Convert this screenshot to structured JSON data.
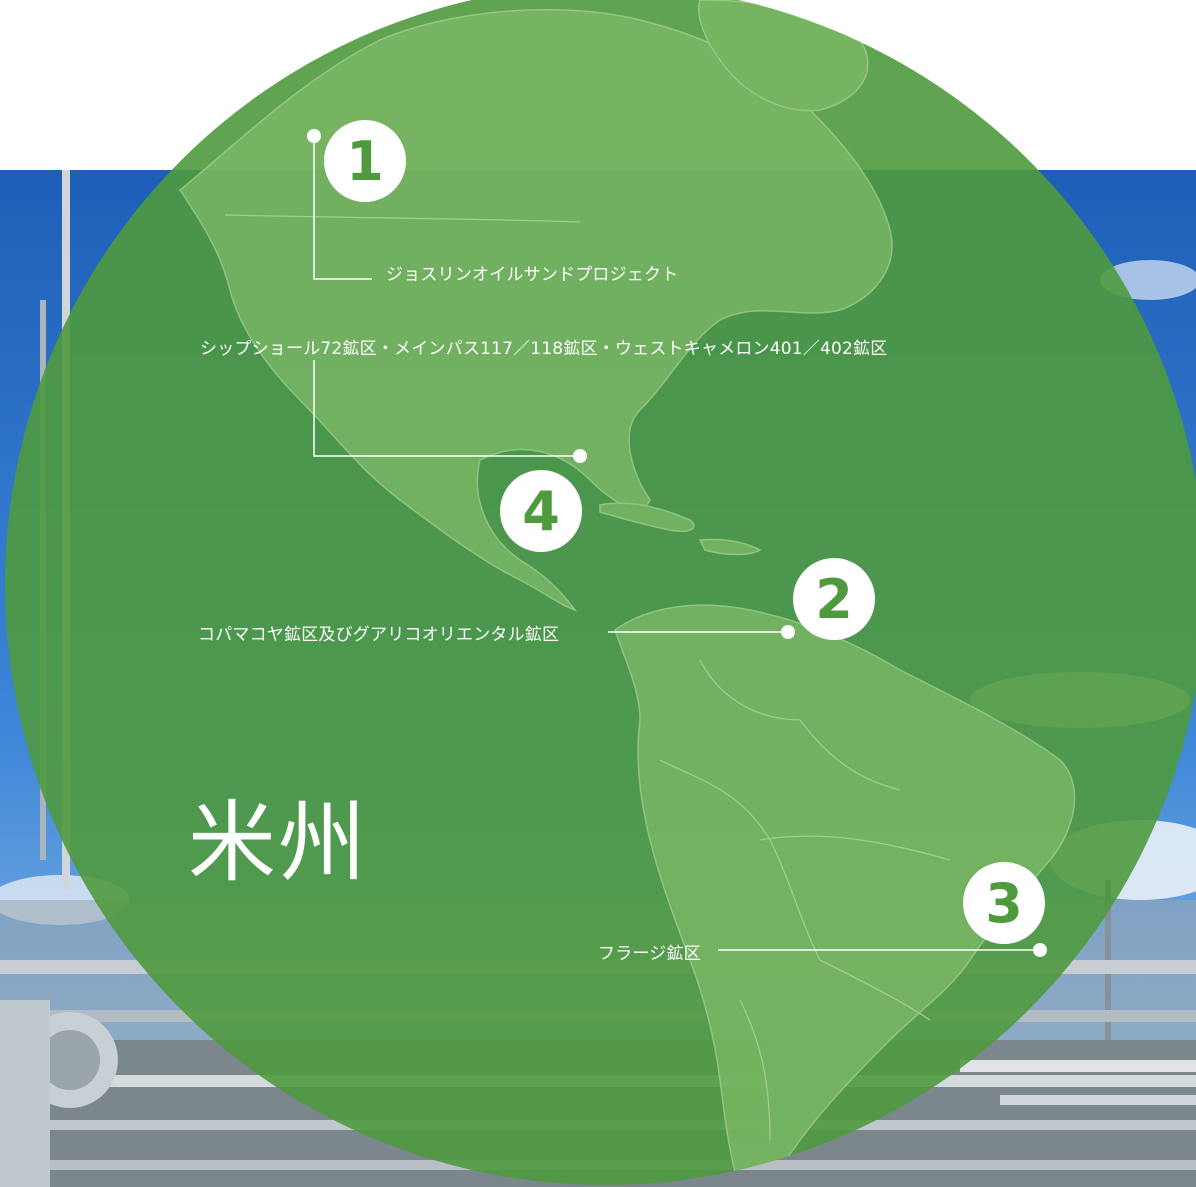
{
  "region_title": "米州",
  "projects": [
    {
      "number": "1",
      "label": "ジョスリンオイルサンドプロジェクト"
    },
    {
      "number": "2",
      "label": "コパマコヤ鉱区及びグアリコオリエンタル鉱区"
    },
    {
      "number": "3",
      "label": "フラージ鉱区"
    },
    {
      "number": "4",
      "label": "シップショール72鉱区・メインパス117／118鉱区・ウェストキャメロン401／402鉱区"
    }
  ],
  "colors": {
    "sky": "#2f73c8",
    "circle": "#4f9a3f",
    "land": "#7fba68",
    "line": "#ffffff"
  }
}
